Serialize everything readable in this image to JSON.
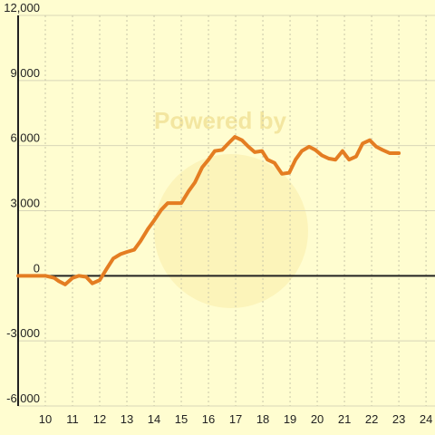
{
  "chart_data": {
    "type": "line",
    "watermark": "Powered by",
    "x": [
      9.0,
      10,
      10.33,
      10.5,
      10.73,
      11,
      11.23,
      11.5,
      11.73,
      12,
      12.27,
      12.5,
      12.77,
      13,
      13.27,
      13.5,
      13.77,
      14,
      14.27,
      14.5,
      14.77,
      15,
      15.27,
      15.5,
      15.77,
      16,
      16.23,
      16.5,
      16.73,
      16.97,
      17.23,
      17.47,
      17.7,
      17.97,
      18.17,
      18.43,
      18.7,
      18.97,
      19.2,
      19.43,
      19.7,
      19.93,
      20.17,
      20.43,
      20.67,
      20.93,
      21.17,
      21.43,
      21.67,
      21.93,
      22.17,
      22.4,
      22.67,
      23
    ],
    "values": [
      0,
      0,
      -100,
      -250,
      -400,
      -100,
      0,
      -50,
      -350,
      -200,
      350,
      800,
      1000,
      1100,
      1200,
      1600,
      2150,
      2550,
      3050,
      3350,
      3350,
      3350,
      3900,
      4300,
      5000,
      5350,
      5750,
      5800,
      6100,
      6400,
      6250,
      5950,
      5700,
      5750,
      5350,
      5200,
      4700,
      4750,
      5350,
      5750,
      5950,
      5800,
      5550,
      5400,
      5350,
      5750,
      5350,
      5500,
      6100,
      6250,
      5950,
      5800,
      5650,
      5650
    ],
    "color": "#e47d22",
    "xlim": [
      9.0,
      24.33
    ],
    "xticks": [
      10,
      11,
      12,
      13,
      14,
      15,
      16,
      17,
      18,
      19,
      20,
      21,
      22,
      23,
      24
    ],
    "ylim": [
      -6000,
      12000
    ],
    "yticks": [
      {
        "value": -6000,
        "label": "-6,000"
      },
      {
        "value": -3000,
        "label": "-3,000"
      },
      0,
      {
        "value": 3000,
        "label": "3,000"
      },
      {
        "value": 6000,
        "label": "6,000"
      },
      {
        "value": 9000,
        "label": "9,000"
      },
      {
        "value": 12000,
        "label": "12,000"
      }
    ],
    "grid": true
  }
}
